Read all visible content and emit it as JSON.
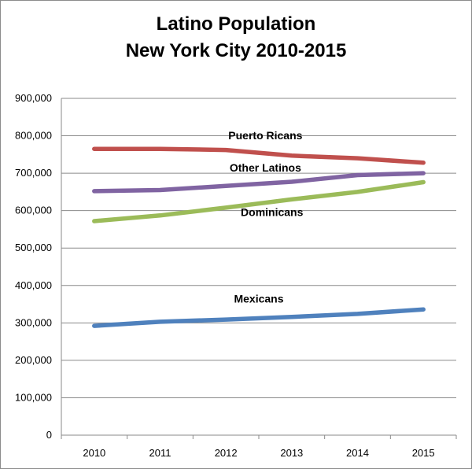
{
  "chart_data": {
    "type": "line",
    "title_line1": "Latino Population",
    "title_line2": "New York City 2010-2015",
    "x": [
      "2010",
      "2011",
      "2012",
      "2013",
      "2014",
      "2015"
    ],
    "ylim": [
      0,
      900000
    ],
    "y_ticks": [
      "0",
      "100,000",
      "200,000",
      "300,000",
      "400,000",
      "500,000",
      "600,000",
      "700,000",
      "800,000",
      "900,000"
    ],
    "grid": true,
    "legend": "inline",
    "series": [
      {
        "name": "Puerto Ricans",
        "color": "#C0504D",
        "values": [
          765000,
          765000,
          762000,
          747000,
          740000,
          728000
        ]
      },
      {
        "name": "Other Latinos",
        "color": "#8064A2",
        "values": [
          652000,
          655000,
          666000,
          677000,
          695000,
          700000
        ]
      },
      {
        "name": "Dominicans",
        "color": "#9BBB59",
        "values": [
          572000,
          587000,
          608000,
          630000,
          650000,
          676000
        ]
      },
      {
        "name": "Mexicans",
        "color": "#4F81BD",
        "values": [
          292000,
          303000,
          309000,
          316000,
          324000,
          336000
        ]
      }
    ]
  }
}
